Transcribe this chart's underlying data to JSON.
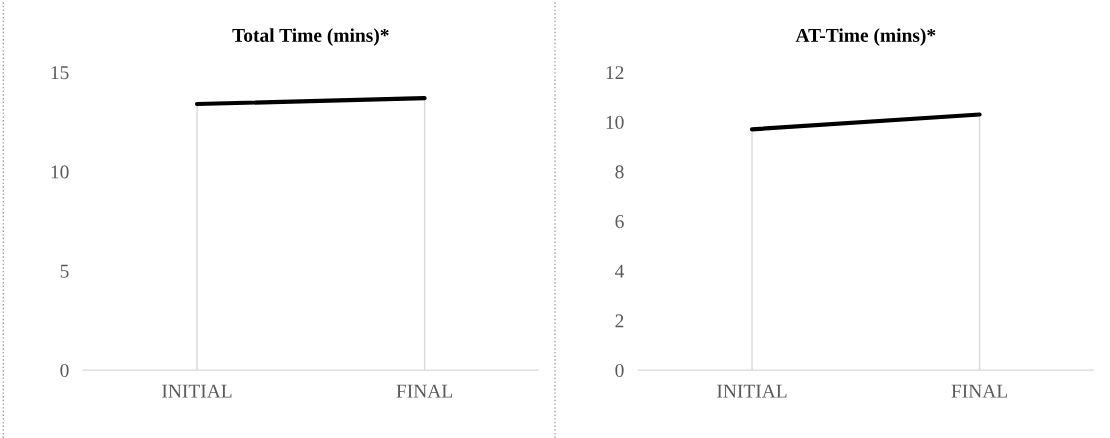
{
  "chart_data": [
    {
      "type": "line",
      "title": "Total Time (mins)*",
      "categories": [
        "INITIAL",
        "FINAL"
      ],
      "series": [
        {
          "color": "#000000",
          "values": [
            13.4,
            13.7
          ]
        }
      ],
      "ylim": [
        0,
        15
      ],
      "yticks": [
        0,
        5,
        10,
        15
      ],
      "grid": "x",
      "legend": false,
      "marker": "none",
      "line_style": "solid"
    },
    {
      "type": "line",
      "title": "AT-Time (mins)*",
      "categories": [
        "INITIAL",
        "FINAL"
      ],
      "series": [
        {
          "color": "#000000",
          "values": [
            9.7,
            10.3
          ]
        }
      ],
      "ylim": [
        0,
        12
      ],
      "yticks": [
        0,
        2,
        4,
        6,
        8,
        10,
        12
      ],
      "grid": "x",
      "legend": false,
      "marker": "none",
      "line_style": "solid"
    }
  ]
}
